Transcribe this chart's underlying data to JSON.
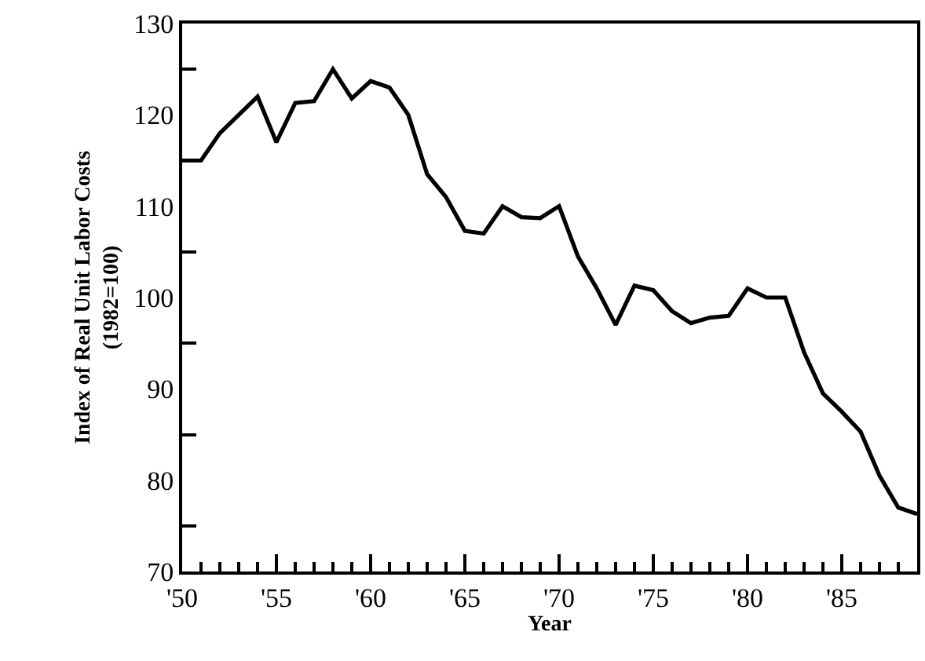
{
  "chart_data": {
    "type": "line",
    "xlabel": "Year",
    "ylabel": "Index of Real Unit Labor Costs\n(1982=100)",
    "x": [
      1950,
      1951,
      1952,
      1953,
      1954,
      1955,
      1956,
      1957,
      1958,
      1959,
      1960,
      1961,
      1962,
      1963,
      1964,
      1965,
      1966,
      1967,
      1968,
      1969,
      1970,
      1971,
      1972,
      1973,
      1974,
      1975,
      1976,
      1977,
      1978,
      1979,
      1980,
      1981,
      1982,
      1983,
      1984,
      1985,
      1986,
      1987,
      1988,
      1989
    ],
    "series": [
      {
        "color": "#000000",
        "values": [
          115,
          115,
          118,
          120,
          122,
          117,
          121.3,
          121.5,
          125,
          121.8,
          123.7,
          123,
          120,
          113.5,
          111,
          107.3,
          107,
          110,
          108.8,
          108.7,
          110,
          104.5,
          101,
          97,
          101.3,
          100.8,
          98.5,
          97.2,
          97.8,
          98,
          101,
          100,
          100,
          94,
          89.5,
          87.5,
          85.3,
          80.5,
          77,
          76.3
        ]
      }
    ],
    "xlim": [
      1950,
      1989
    ],
    "ylim": [
      70,
      130
    ],
    "xticks": [
      {
        "value": 1950,
        "label": "'50"
      },
      {
        "value": 1951,
        "label": null
      },
      {
        "value": 1952,
        "label": null
      },
      {
        "value": 1953,
        "label": null
      },
      {
        "value": 1954,
        "label": null
      },
      {
        "value": 1955,
        "label": "'55"
      },
      {
        "value": 1956,
        "label": null
      },
      {
        "value": 1957,
        "label": null
      },
      {
        "value": 1958,
        "label": null
      },
      {
        "value": 1959,
        "label": null
      },
      {
        "value": 1960,
        "label": "'60"
      },
      {
        "value": 1961,
        "label": null
      },
      {
        "value": 1962,
        "label": null
      },
      {
        "value": 1963,
        "label": null
      },
      {
        "value": 1964,
        "label": null
      },
      {
        "value": 1965,
        "label": "'65"
      },
      {
        "value": 1966,
        "label": null
      },
      {
        "value": 1967,
        "label": null
      },
      {
        "value": 1968,
        "label": null
      },
      {
        "value": 1969,
        "label": null
      },
      {
        "value": 1970,
        "label": "'70"
      },
      {
        "value": 1971,
        "label": null
      },
      {
        "value": 1972,
        "label": null
      },
      {
        "value": 1973,
        "label": null
      },
      {
        "value": 1974,
        "label": null
      },
      {
        "value": 1975,
        "label": "'75"
      },
      {
        "value": 1976,
        "label": null
      },
      {
        "value": 1977,
        "label": null
      },
      {
        "value": 1978,
        "label": null
      },
      {
        "value": 1979,
        "label": null
      },
      {
        "value": 1980,
        "label": "'80"
      },
      {
        "value": 1981,
        "label": null
      },
      {
        "value": 1982,
        "label": null
      },
      {
        "value": 1983,
        "label": null
      },
      {
        "value": 1984,
        "label": null
      },
      {
        "value": 1985,
        "label": "'85"
      },
      {
        "value": 1986,
        "label": null
      },
      {
        "value": 1987,
        "label": null
      },
      {
        "value": 1988,
        "label": null
      }
    ],
    "yticks": [
      70,
      {
        "value": 75,
        "label": null
      },
      80,
      {
        "value": 85,
        "label": null
      },
      90,
      {
        "value": 95,
        "label": null
      },
      100,
      {
        "value": 105,
        "label": null
      },
      110,
      {
        "value": 115,
        "label": null
      },
      120,
      {
        "value": 125,
        "label": null
      },
      130
    ],
    "marker": "none",
    "line_style": "solid"
  }
}
